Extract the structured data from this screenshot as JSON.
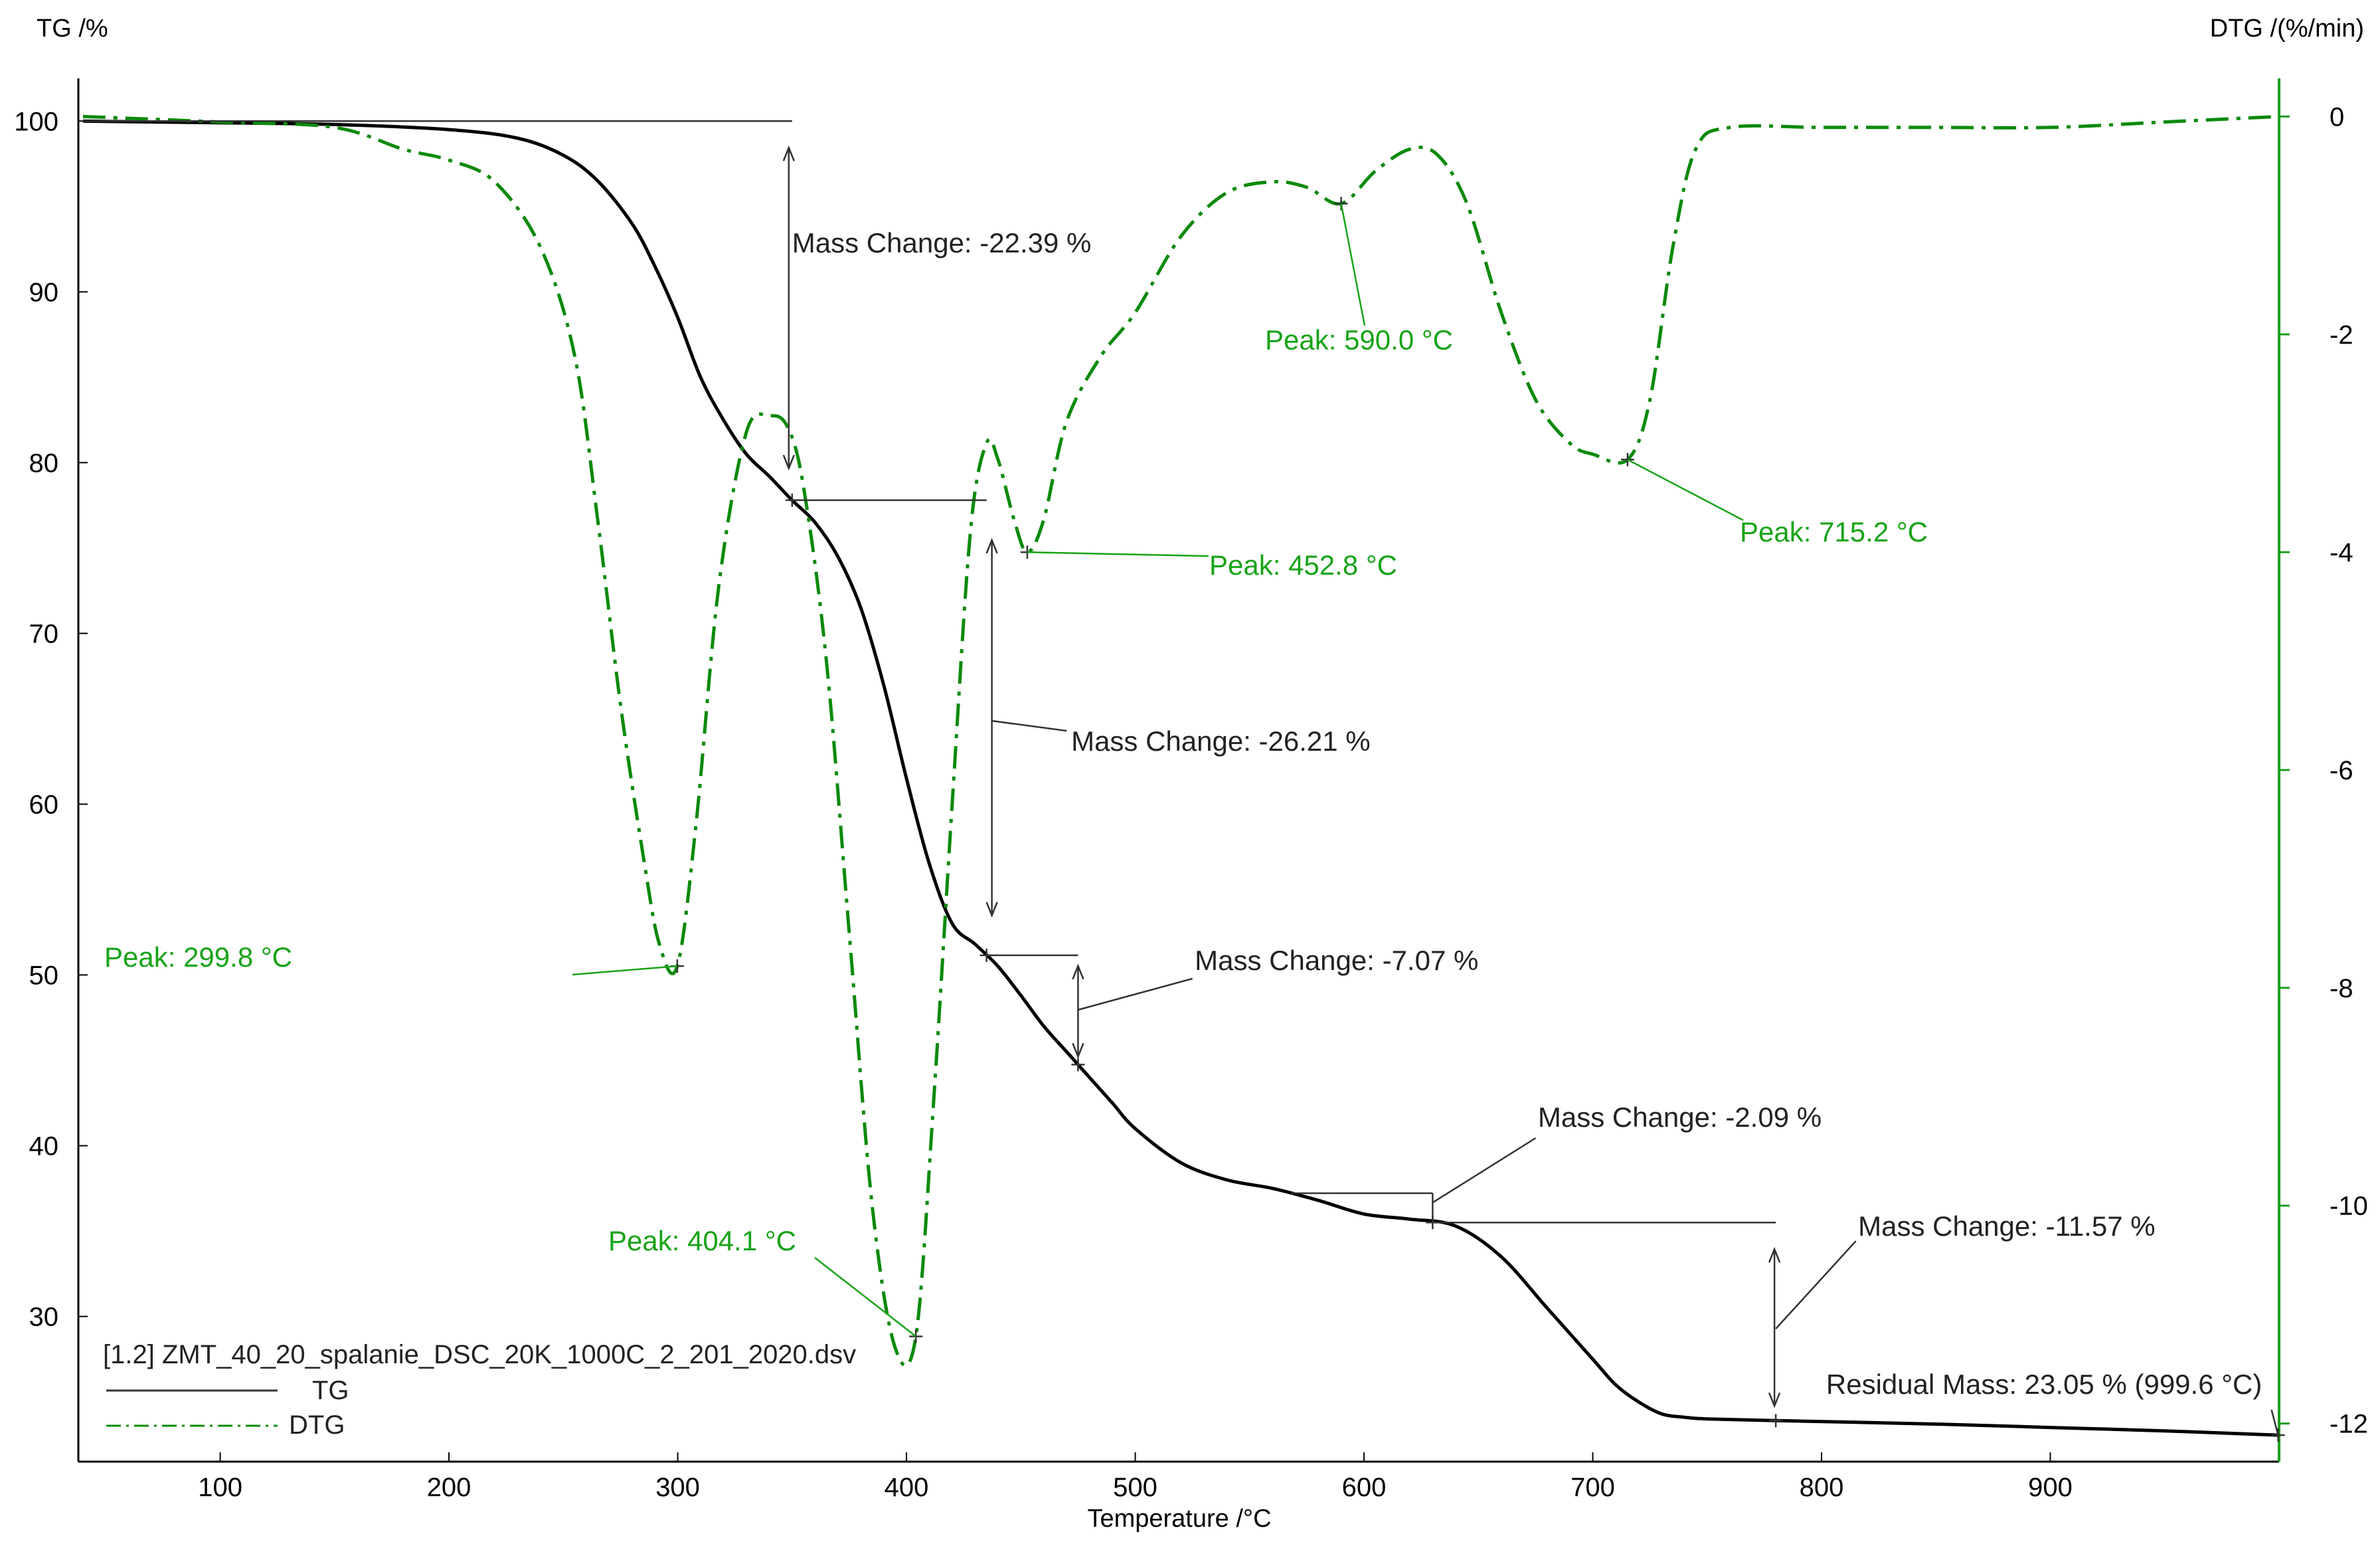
{
  "colors": {
    "tg": "#000000",
    "dtg": "#0b8a0b",
    "dtg_text": "#17a317",
    "right_axis": "#1c9e1c",
    "annotation_line": "#333333"
  },
  "chart_data": {
    "type": "line",
    "title": "",
    "xlabel": "Temperature /°C",
    "ylabel_left": "TG /%",
    "ylabel_right": "DTG /(%/min)",
    "xlim": [
      38,
      1000
    ],
    "ylim_left": [
      21.5,
      102.5
    ],
    "ylim_right": [
      -12.35,
      0.35
    ],
    "x_ticks": [
      100,
      200,
      300,
      400,
      500,
      600,
      700,
      800,
      900
    ],
    "y_ticks_left": [
      30,
      40,
      50,
      60,
      70,
      80,
      90,
      100
    ],
    "y_ticks_right": [
      -12,
      -10,
      -8,
      -6,
      -4,
      -2,
      0
    ],
    "grid": false,
    "legend_position": "bottom-left",
    "file_label": "[1.2] ZMT_40_20_spalanie_DSC_20K_1000C_2_201_2020.dsv",
    "series": [
      {
        "name": "TG",
        "axis": "left",
        "style": "solid",
        "x": [
          40,
          100,
          150,
          200,
          230,
          250,
          265,
          280,
          290,
          300,
          310,
          320,
          330,
          340,
          350,
          360,
          370,
          380,
          390,
          400,
          410,
          420,
          430,
          440,
          450,
          460,
          470,
          480,
          490,
          500,
          520,
          540,
          560,
          580,
          600,
          620,
          640,
          660,
          680,
          700,
          710,
          720,
          730,
          740,
          750,
          780,
          850,
          900,
          950,
          999.6
        ],
        "y": [
          100,
          99.9,
          99.8,
          99.5,
          99.0,
          98.0,
          96.5,
          94.0,
          91.5,
          88.5,
          85.0,
          82.5,
          80.5,
          79.2,
          77.8,
          76.5,
          74.5,
          71.5,
          67.0,
          61.5,
          56.5,
          53.0,
          51.8,
          50.5,
          48.8,
          47.0,
          45.5,
          44.0,
          42.5,
          41.0,
          39.0,
          38.0,
          37.5,
          36.8,
          36.0,
          35.7,
          35.3,
          33.5,
          30.5,
          27.5,
          26.0,
          25.0,
          24.3,
          24.1,
          24.0,
          23.9,
          23.7,
          23.5,
          23.3,
          23.05
        ]
      },
      {
        "name": "DTG",
        "axis": "right",
        "style": "dash-dot",
        "x": [
          40,
          100,
          150,
          180,
          200,
          220,
          240,
          255,
          265,
          275,
          285,
          292,
          299.8,
          308,
          318,
          330,
          340,
          348,
          355,
          365,
          375,
          385,
          395,
          404.1,
          412,
          420,
          428,
          435,
          440,
          447,
          452.8,
          460,
          470,
          485,
          500,
          520,
          540,
          560,
          575,
          590,
          605,
          620,
          632,
          645,
          660,
          675,
          690,
          700,
          715.2,
          725,
          735,
          745,
          760,
          800,
          850,
          900,
          950,
          1000
        ],
        "y": [
          0.0,
          -0.05,
          -0.1,
          -0.3,
          -0.4,
          -0.6,
          -1.2,
          -2.2,
          -3.7,
          -5.4,
          -6.8,
          -7.6,
          -7.8,
          -6.5,
          -4.3,
          -2.9,
          -2.75,
          -2.85,
          -3.4,
          -5.0,
          -7.5,
          -10.0,
          -11.3,
          -11.2,
          -9.0,
          -6.3,
          -3.8,
          -3.0,
          -3.15,
          -3.7,
          -4.0,
          -3.7,
          -2.8,
          -2.2,
          -1.8,
          -1.1,
          -0.7,
          -0.6,
          -0.65,
          -0.8,
          -0.5,
          -0.3,
          -0.35,
          -0.8,
          -1.8,
          -2.6,
          -3.0,
          -3.1,
          -3.15,
          -2.6,
          -1.2,
          -0.3,
          -0.1,
          -0.1,
          -0.1,
          -0.1,
          -0.05,
          0.0
        ]
      }
    ],
    "annotations": [
      {
        "text": "Mass Change: -22.39 %",
        "color": "black"
      },
      {
        "text": "Mass Change: -26.21 %",
        "color": "black"
      },
      {
        "text": "Mass Change: -7.07 %",
        "color": "black"
      },
      {
        "text": "Mass Change: -2.09 %",
        "color": "black"
      },
      {
        "text": "Mass Change: -11.57 %",
        "color": "black"
      },
      {
        "text": "Residual Mass: 23.05 % (999.6 °C)",
        "color": "black"
      },
      {
        "text": "Peak: 299.8 °C",
        "color": "green"
      },
      {
        "text": "Peak: 404.1 °C",
        "color": "green"
      },
      {
        "text": "Peak: 452.8 °C",
        "color": "green"
      },
      {
        "text": "Peak: 590.0 °C",
        "color": "green"
      },
      {
        "text": "Peak: 715.2 °C",
        "color": "green"
      }
    ]
  }
}
